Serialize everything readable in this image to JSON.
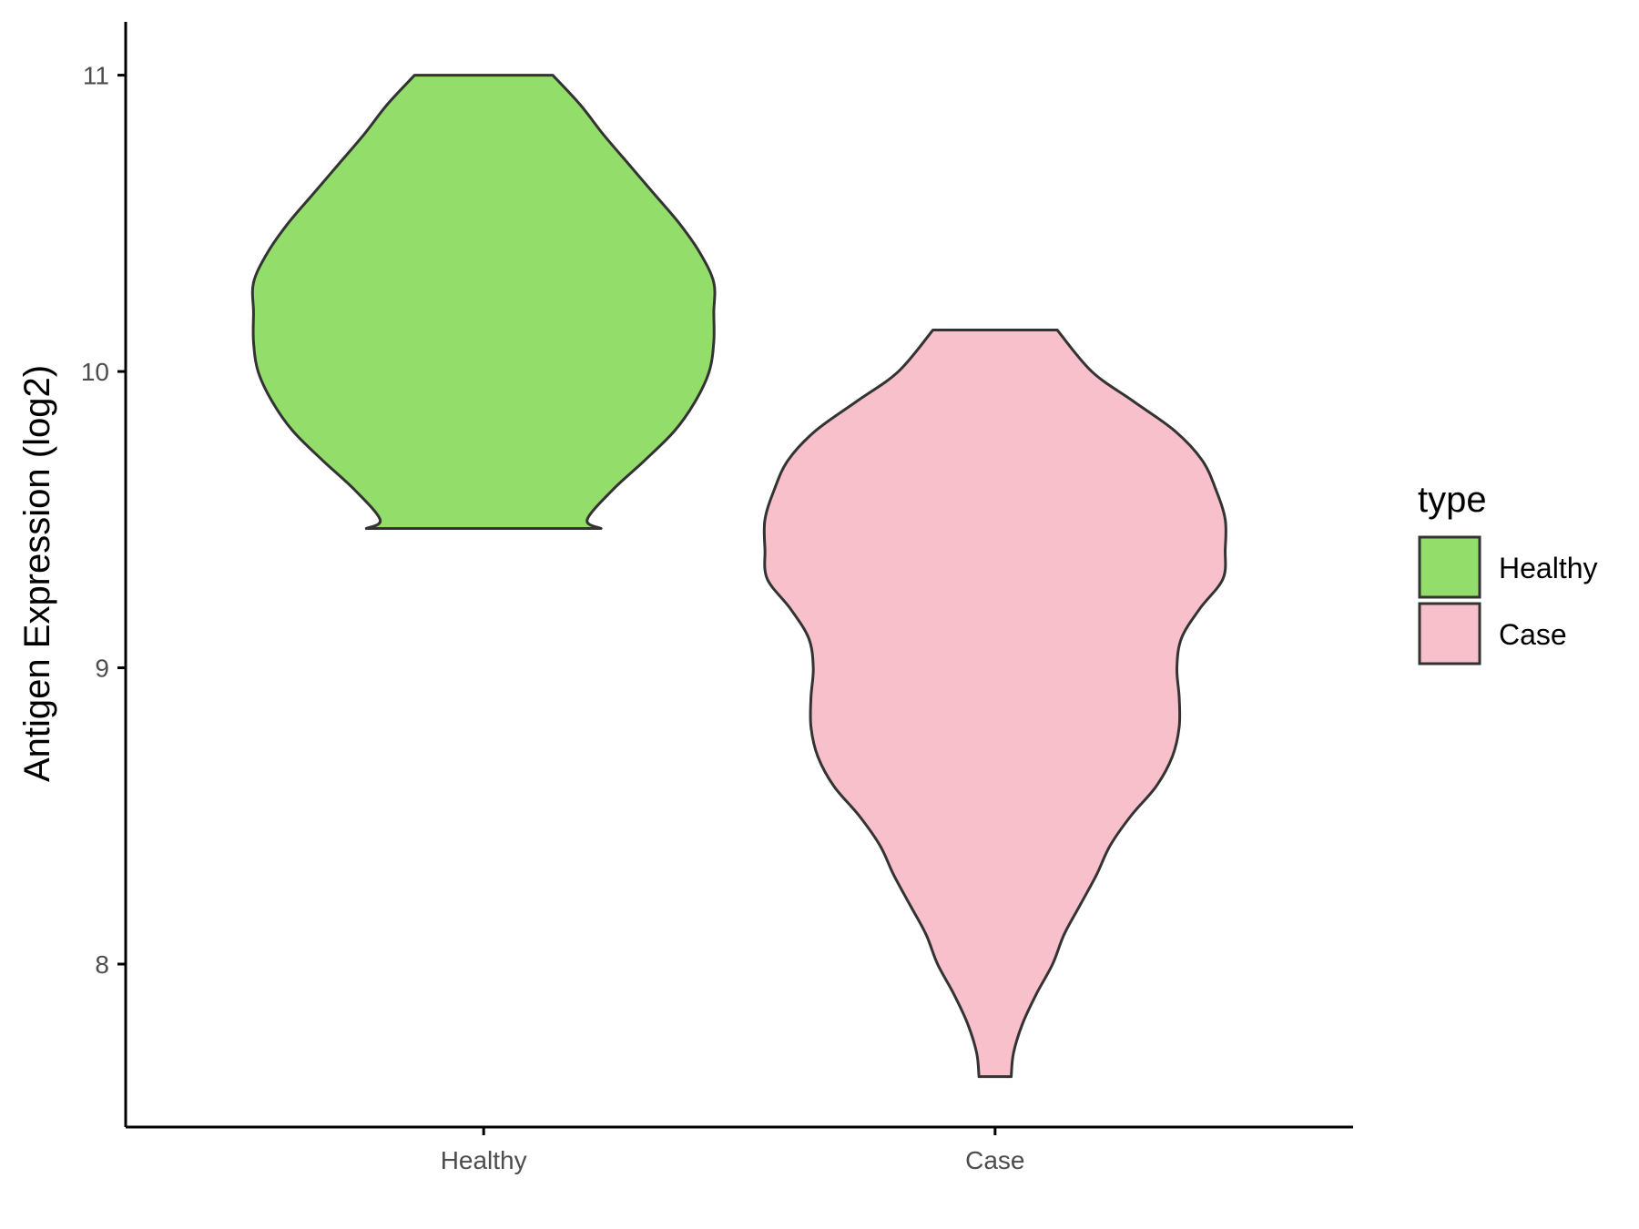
{
  "chart_data": {
    "type": "violin",
    "title": "",
    "xlabel": "",
    "ylabel": "Antigen Expression (log2)",
    "ylim": [
      7.45,
      11.18
    ],
    "yticks": [
      8,
      9,
      10,
      11
    ],
    "categories": [
      "Healthy",
      "Case"
    ],
    "legend": {
      "title": "type",
      "position": "right",
      "entries": [
        {
          "label": "Healthy",
          "color": "#93dd6b"
        },
        {
          "label": "Case",
          "color": "#f7c0cb"
        }
      ]
    },
    "series": [
      {
        "name": "Healthy",
        "color": "#93dd6b",
        "min": 9.47,
        "max": 11.0,
        "profile": [
          [
            11.0,
            0.3
          ],
          [
            10.9,
            0.42
          ],
          [
            10.8,
            0.52
          ],
          [
            10.7,
            0.63
          ],
          [
            10.6,
            0.74
          ],
          [
            10.5,
            0.85
          ],
          [
            10.4,
            0.94
          ],
          [
            10.3,
            1.0
          ],
          [
            10.2,
            1.0
          ],
          [
            10.1,
            1.0
          ],
          [
            10.0,
            0.98
          ],
          [
            9.9,
            0.92
          ],
          [
            9.8,
            0.83
          ],
          [
            9.7,
            0.7
          ],
          [
            9.6,
            0.56
          ],
          [
            9.5,
            0.45
          ],
          [
            9.47,
            0.51
          ]
        ]
      },
      {
        "name": "Case",
        "color": "#f7c0cb",
        "min": 7.62,
        "max": 10.14,
        "profile": [
          [
            10.14,
            0.27
          ],
          [
            10.0,
            0.42
          ],
          [
            9.9,
            0.6
          ],
          [
            9.8,
            0.78
          ],
          [
            9.7,
            0.9
          ],
          [
            9.6,
            0.96
          ],
          [
            9.5,
            1.0
          ],
          [
            9.4,
            1.0
          ],
          [
            9.3,
            0.99
          ],
          [
            9.2,
            0.89
          ],
          [
            9.1,
            0.81
          ],
          [
            9.0,
            0.79
          ],
          [
            8.9,
            0.8
          ],
          [
            8.8,
            0.8
          ],
          [
            8.7,
            0.77
          ],
          [
            8.6,
            0.7
          ],
          [
            8.5,
            0.59
          ],
          [
            8.4,
            0.5
          ],
          [
            8.3,
            0.44
          ],
          [
            8.2,
            0.37
          ],
          [
            8.1,
            0.3
          ],
          [
            8.0,
            0.25
          ],
          [
            7.9,
            0.18
          ],
          [
            7.8,
            0.12
          ],
          [
            7.7,
            0.08
          ],
          [
            7.62,
            0.07
          ]
        ]
      }
    ]
  }
}
